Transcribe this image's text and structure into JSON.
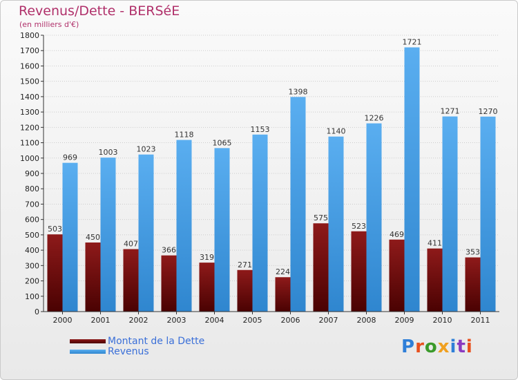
{
  "title": "Revenus/Dette - BERSéE",
  "subtitle": "(en milliers d'€)",
  "logo": "Proxiti",
  "colors": {
    "dette": "#6b0a0a",
    "revenus": "#4a9fe0",
    "axis": "#333333",
    "grid": "#cccccc",
    "title": "#b0306a",
    "legend_text": "#3a6fd8"
  },
  "chart_data": {
    "type": "bar",
    "categories": [
      "2000",
      "2001",
      "2002",
      "2003",
      "2004",
      "2005",
      "2006",
      "2007",
      "2008",
      "2009",
      "2010",
      "2011"
    ],
    "series": [
      {
        "name": "Montant de la Dette",
        "values": [
          503,
          450,
          407,
          366,
          319,
          271,
          224,
          575,
          523,
          469,
          411,
          353
        ]
      },
      {
        "name": "Revenus",
        "values": [
          969,
          1003,
          1023,
          1118,
          1065,
          1153,
          1398,
          1140,
          1226,
          1721,
          1271,
          1270
        ]
      }
    ],
    "ylim": [
      0,
      1800
    ],
    "ytick_step": 100,
    "grid": true,
    "legend_position": "bottom-left",
    "data_labels": true
  }
}
